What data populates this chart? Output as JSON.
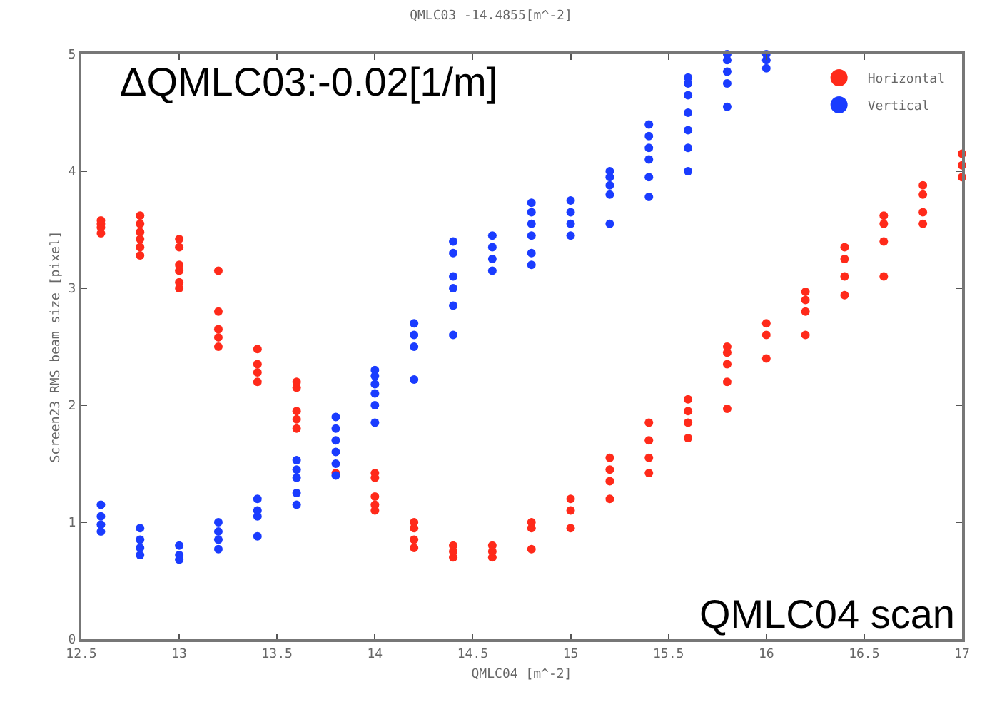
{
  "chart_data": {
    "type": "scatter",
    "title": "QMLC03 -14.4855[m^-2]",
    "xlabel": "QMLC04 [m^-2]",
    "ylabel": "Screen23 RMS beam size [pixel]",
    "annotations": [
      "ΔQMLC03:-0.02[1/m]",
      "QMLC04 scan"
    ],
    "xlim": [
      12.5,
      17
    ],
    "xticks": [
      12.5,
      13,
      13.5,
      14,
      14.5,
      15,
      15.5,
      16,
      16.5,
      17
    ],
    "ylim": [
      0,
      5
    ],
    "yticks": [
      0,
      1,
      2,
      3,
      4,
      5
    ],
    "grid": false,
    "legend": "top right",
    "marker": "circle",
    "series": [
      {
        "name": "Horizontal",
        "color": "#ff2a1a",
        "x": [
          12.6,
          12.6,
          12.6,
          12.6,
          12.8,
          12.8,
          12.8,
          12.8,
          12.8,
          12.8,
          13,
          13,
          13,
          13,
          13,
          13,
          13.2,
          13.2,
          13.2,
          13.2,
          13.2,
          13.4,
          13.4,
          13.4,
          13.4,
          13.6,
          13.6,
          13.6,
          13.6,
          13.6,
          13.8,
          14,
          14,
          14,
          14,
          14,
          14.2,
          14.2,
          14.2,
          14.2,
          14.4,
          14.4,
          14.4,
          14.6,
          14.6,
          14.6,
          14.8,
          14.8,
          14.8,
          15,
          15,
          15,
          15.2,
          15.2,
          15.2,
          15.2,
          15.4,
          15.4,
          15.4,
          15.4,
          15.6,
          15.6,
          15.6,
          15.6,
          15.8,
          15.8,
          15.8,
          15.8,
          15.8,
          16,
          16,
          16,
          16.2,
          16.2,
          16.2,
          16.2,
          16.4,
          16.4,
          16.4,
          16.4,
          16.6,
          16.6,
          16.6,
          16.6,
          16.8,
          16.8,
          16.8,
          16.8,
          17,
          17,
          17
        ],
        "values": [
          3.47,
          3.52,
          3.55,
          3.58,
          3.28,
          3.35,
          3.42,
          3.48,
          3.55,
          3.62,
          3.0,
          3.05,
          3.15,
          3.2,
          3.35,
          3.42,
          2.5,
          2.58,
          2.65,
          2.8,
          3.15,
          2.2,
          2.28,
          2.35,
          2.48,
          1.8,
          1.88,
          1.95,
          2.15,
          2.2,
          1.42,
          1.1,
          1.15,
          1.22,
          1.38,
          1.42,
          0.78,
          0.85,
          0.95,
          1.0,
          0.7,
          0.75,
          0.8,
          0.7,
          0.75,
          0.8,
          0.77,
          0.95,
          1.0,
          0.95,
          1.1,
          1.2,
          1.2,
          1.35,
          1.45,
          1.55,
          1.42,
          1.55,
          1.7,
          1.85,
          1.72,
          1.85,
          1.95,
          2.05,
          1.97,
          2.2,
          2.35,
          2.45,
          2.5,
          2.4,
          2.6,
          2.7,
          2.6,
          2.8,
          2.9,
          2.97,
          2.94,
          3.1,
          3.25,
          3.35,
          3.1,
          3.4,
          3.55,
          3.62,
          3.55,
          3.65,
          3.8,
          3.88,
          3.95,
          4.05,
          4.15
        ]
      },
      {
        "name": "Vertical",
        "color": "#1a3cff",
        "x": [
          12.6,
          12.6,
          12.6,
          12.6,
          12.8,
          12.8,
          12.8,
          12.8,
          13,
          13,
          13,
          13.2,
          13.2,
          13.2,
          13.2,
          13.4,
          13.4,
          13.4,
          13.4,
          13.6,
          13.6,
          13.6,
          13.6,
          13.6,
          13.8,
          13.8,
          13.8,
          13.8,
          13.8,
          13.8,
          14,
          14,
          14,
          14,
          14,
          14,
          14.2,
          14.2,
          14.2,
          14.2,
          14.4,
          14.4,
          14.4,
          14.4,
          14.4,
          14.4,
          14.6,
          14.6,
          14.6,
          14.6,
          14.8,
          14.8,
          14.8,
          14.8,
          14.8,
          14.8,
          15,
          15,
          15,
          15,
          15.2,
          15.2,
          15.2,
          15.2,
          15.2,
          15.4,
          15.4,
          15.4,
          15.4,
          15.4,
          15.4,
          15.6,
          15.6,
          15.6,
          15.6,
          15.6,
          15.6,
          15.6,
          15.8,
          15.8,
          15.8,
          15.8,
          15.8,
          16,
          16,
          16
        ],
        "values": [
          0.92,
          0.98,
          1.05,
          1.15,
          0.72,
          0.78,
          0.85,
          0.95,
          0.68,
          0.72,
          0.8,
          0.77,
          0.85,
          0.92,
          1.0,
          0.88,
          1.05,
          1.1,
          1.2,
          1.15,
          1.25,
          1.38,
          1.45,
          1.53,
          1.4,
          1.5,
          1.6,
          1.7,
          1.8,
          1.9,
          1.85,
          2.0,
          2.1,
          2.18,
          2.25,
          2.3,
          2.22,
          2.5,
          2.6,
          2.7,
          2.6,
          2.85,
          3.0,
          3.1,
          3.3,
          3.4,
          3.15,
          3.25,
          3.35,
          3.45,
          3.2,
          3.3,
          3.45,
          3.55,
          3.65,
          3.73,
          3.45,
          3.55,
          3.65,
          3.75,
          3.55,
          3.8,
          3.88,
          3.95,
          4.0,
          3.78,
          3.95,
          4.1,
          4.2,
          4.3,
          4.4,
          4.0,
          4.2,
          4.35,
          4.5,
          4.65,
          4.75,
          4.8,
          4.55,
          4.75,
          4.85,
          4.95,
          5.0,
          4.88,
          4.95,
          5.0
        ]
      }
    ]
  }
}
